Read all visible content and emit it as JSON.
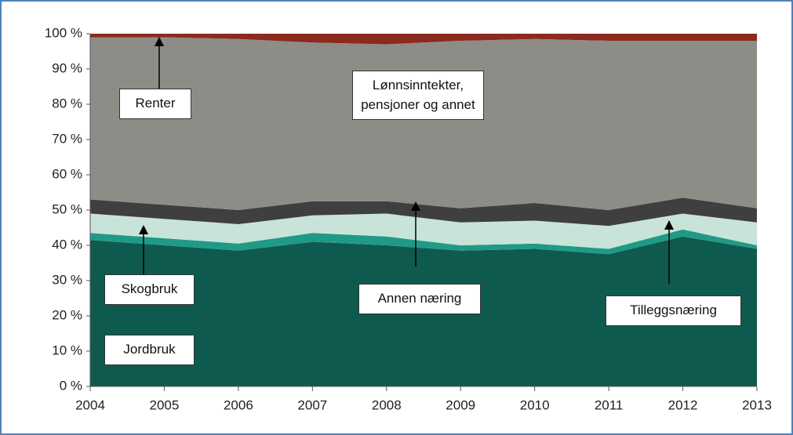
{
  "chart_data": {
    "type": "stacked_area",
    "categories": [
      "2004",
      "2005",
      "2006",
      "2007",
      "2008",
      "2009",
      "2010",
      "2011",
      "2012",
      "2013"
    ],
    "series": [
      {
        "name": "Jordbruk",
        "color": "#0f5a4e",
        "values": [
          41.5,
          40,
          38.5,
          41,
          40,
          38.5,
          39,
          37.5,
          42.5,
          39
        ]
      },
      {
        "name": "Skogbruk",
        "color": "#1f9a86",
        "values": [
          2,
          2,
          2,
          2.5,
          2.5,
          1.5,
          1.5,
          1.5,
          2,
          1
        ]
      },
      {
        "name": "Tilleggsnæring",
        "color": "#c8e3d8",
        "values": [
          5.5,
          5.5,
          5.5,
          5,
          6.5,
          6.5,
          6.5,
          6.5,
          4.5,
          6.5
        ]
      },
      {
        "name": "Annen næring",
        "color": "#3f3f3f",
        "values": [
          4,
          4,
          4,
          4,
          3.5,
          4,
          5,
          4.5,
          4.5,
          4
        ]
      },
      {
        "name": "Lønnsinntekter, pensjoner og annet",
        "color": "#8d8c86",
        "values": [
          46,
          47.5,
          48.5,
          45,
          44.5,
          47.5,
          46.5,
          48,
          44.5,
          47.5
        ]
      },
      {
        "name": "Renter",
        "color": "#8b2a1e",
        "values": [
          1,
          1,
          1.5,
          2.5,
          3,
          2,
          1.5,
          2,
          2,
          2
        ]
      }
    ],
    "ylim": [
      0,
      100
    ],
    "yticks": [
      {
        "value": 0,
        "label": "0 %"
      },
      {
        "value": 10,
        "label": "10 %"
      },
      {
        "value": 20,
        "label": "20 %"
      },
      {
        "value": 30,
        "label": "30 %"
      },
      {
        "value": 40,
        "label": "40 %"
      },
      {
        "value": 50,
        "label": "50 %"
      },
      {
        "value": 60,
        "label": "60 %"
      },
      {
        "value": 70,
        "label": "70 %"
      },
      {
        "value": 80,
        "label": "80 %"
      },
      {
        "value": 90,
        "label": "90 %"
      },
      {
        "value": 100,
        "label": "100 %"
      }
    ]
  }
}
